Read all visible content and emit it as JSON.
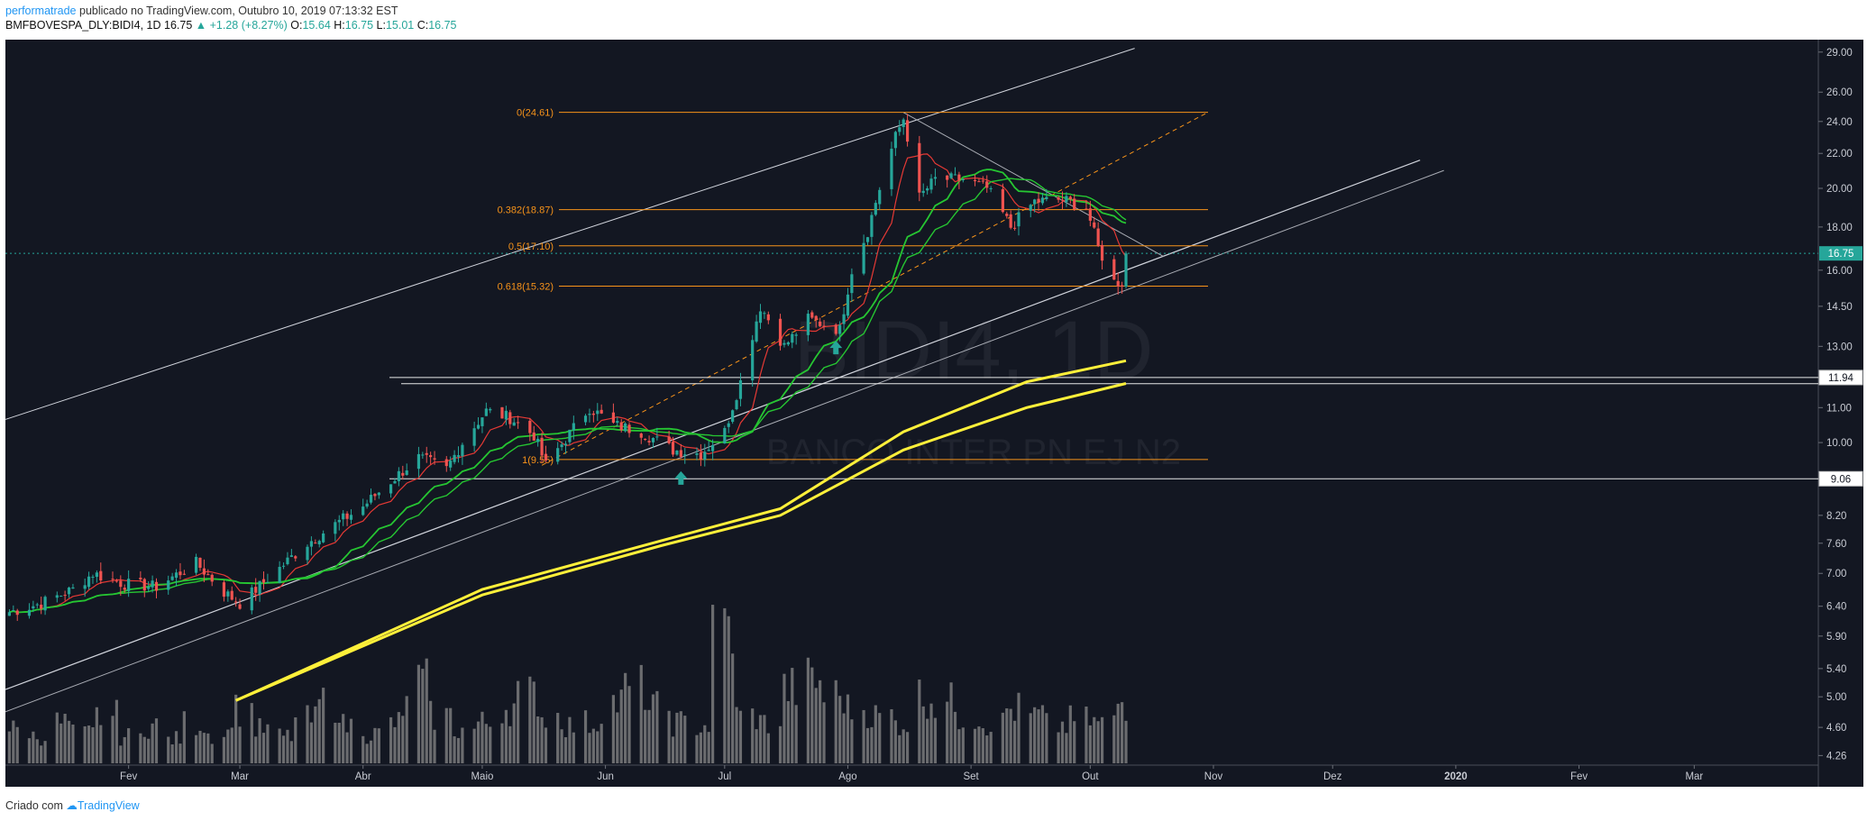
{
  "header": {
    "author": "performatrade",
    "published": "publicado no TradingView.com, Outubro 10, 2019 07:13:32 EST",
    "symbol": "BMFBOVESPA_DLY:BIDI4, 1D",
    "last": "16.75",
    "change": "▲ +1.28 (+8.27%)",
    "o_label": "O:",
    "o_value": "15.64",
    "h_label": "H:",
    "h_value": "16.75",
    "l_label": "L:",
    "l_value": "15.01",
    "c_label": "C:",
    "c_value": "16.75"
  },
  "footer": {
    "prefix": "Criado com",
    "brand": "TradingView"
  },
  "watermark": {
    "ticker": "BIDI4, 1D",
    "name": "BANCO INTER PN EJ N2"
  },
  "colors": {
    "background": "#131722",
    "up": "#26a69a",
    "down": "#ef5350",
    "fib": "#f7931a",
    "ma_long": "#fff03a",
    "ma_fast": "#e53935",
    "ma_mid": "#26c632",
    "volume": "#8a8a8a"
  },
  "chart_data": {
    "type": "candlestick",
    "scale": "log",
    "ylim": [
      4.15,
      30
    ],
    "price_ticks": [
      "29.00",
      "26.00",
      "24.00",
      "22.00",
      "20.00",
      "18.00",
      "16.00",
      "14.50",
      "13.00",
      "11.94",
      "11.00",
      "10.00",
      "9.06",
      "8.20",
      "7.60",
      "7.00",
      "6.40",
      "5.90",
      "5.40",
      "5.00",
      "4.60",
      "4.26"
    ],
    "price_labels": [
      {
        "text": "16.75",
        "value": 16.75,
        "style": "current"
      },
      {
        "text": "11.94",
        "value": 11.94,
        "style": "line"
      },
      {
        "text": "9.06",
        "value": 9.06,
        "style": "line"
      }
    ],
    "x_labels": [
      "Fev",
      "Mar",
      "Abr",
      "Maio",
      "Jun",
      "Jul",
      "Ago",
      "Set",
      "Out",
      "Nov",
      "Dez",
      "2020",
      "Fev",
      "Mar"
    ],
    "fib_levels": [
      {
        "label": "0(24.61)",
        "value": 24.61
      },
      {
        "label": "0.382(18.87)",
        "value": 18.87
      },
      {
        "label": "0.5(17.10)",
        "value": 17.1
      },
      {
        "label": "0.618(15.32)",
        "value": 15.32
      },
      {
        "label": "1(9.55)",
        "value": 9.55
      }
    ],
    "horizontal_lines": [
      11.94,
      11.74,
      9.06
    ],
    "price_path": [
      [
        "2019-01-02",
        6.3
      ],
      [
        "2019-01-10",
        6.45
      ],
      [
        "2019-01-18",
        6.7
      ],
      [
        "2019-01-23",
        7.0
      ],
      [
        "2019-01-31",
        6.8
      ],
      [
        "2019-02-08",
        6.75
      ],
      [
        "2019-02-18",
        7.2
      ],
      [
        "2019-02-25",
        6.65
      ],
      [
        "2019-03-01",
        6.45
      ],
      [
        "2019-03-05",
        6.7
      ],
      [
        "2019-03-11",
        7.1
      ],
      [
        "2019-03-18",
        7.6
      ],
      [
        "2019-03-25",
        8.0
      ],
      [
        "2019-04-01",
        8.4
      ],
      [
        "2019-04-08",
        9.0
      ],
      [
        "2019-04-15",
        9.6
      ],
      [
        "2019-04-22",
        9.3
      ],
      [
        "2019-04-26",
        10.0
      ],
      [
        "2019-05-02",
        10.9
      ],
      [
        "2019-05-08",
        10.7
      ],
      [
        "2019-05-14",
        10.2
      ],
      [
        "2019-05-17",
        9.4
      ],
      [
        "2019-05-22",
        10.1
      ],
      [
        "2019-05-28",
        11.0
      ],
      [
        "2019-06-03",
        10.5
      ],
      [
        "2019-06-10",
        10.3
      ],
      [
        "2019-06-18",
        9.8
      ],
      [
        "2019-06-25",
        9.7
      ],
      [
        "2019-07-01",
        10.3
      ],
      [
        "2019-07-05",
        11.8
      ],
      [
        "2019-07-10",
        14.5
      ],
      [
        "2019-07-16",
        13.0
      ],
      [
        "2019-07-22",
        14.0
      ],
      [
        "2019-07-30",
        13.6
      ],
      [
        "2019-08-02",
        16.0
      ],
      [
        "2019-08-06",
        17.8
      ],
      [
        "2019-08-09",
        20.0
      ],
      [
        "2019-08-13",
        23.0
      ],
      [
        "2019-08-15",
        24.2
      ],
      [
        "2019-08-19",
        19.5
      ],
      [
        "2019-08-23",
        20.5
      ],
      [
        "2019-08-30",
        20.5
      ],
      [
        "2019-09-05",
        20.0
      ],
      [
        "2019-09-11",
        18.0
      ],
      [
        "2019-09-17",
        19.3
      ],
      [
        "2019-09-24",
        19.4
      ],
      [
        "2019-09-30",
        19.0
      ],
      [
        "2019-10-03",
        17.0
      ],
      [
        "2019-10-07",
        15.5
      ],
      [
        "2019-10-09",
        15.47
      ],
      [
        "2019-10-10",
        16.75
      ]
    ],
    "ma_long": [
      [
        "2019-02-28",
        4.95
      ],
      [
        "2019-05-01",
        6.6
      ],
      [
        "2019-06-15",
        7.55
      ],
      [
        "2019-07-15",
        8.2
      ],
      [
        "2019-08-15",
        9.8
      ],
      [
        "2019-09-15",
        11.0
      ],
      [
        "2019-10-10",
        11.75
      ]
    ],
    "ma_long_upper": [
      [
        "2019-02-28",
        4.95
      ],
      [
        "2019-05-01",
        6.7
      ],
      [
        "2019-06-15",
        7.65
      ],
      [
        "2019-07-15",
        8.35
      ],
      [
        "2019-08-15",
        10.3
      ],
      [
        "2019-09-15",
        11.8
      ],
      [
        "2019-10-10",
        12.5
      ]
    ],
    "volume_max_value": 1.0,
    "volume": [
      0.25,
      0.2,
      0.3,
      0.22,
      0.35,
      0.2,
      0.28,
      0.18,
      0.3,
      0.22,
      0.4,
      0.25,
      0.2,
      0.32,
      0.45,
      0.28,
      0.22,
      0.3,
      0.6,
      0.35,
      0.25,
      0.3,
      0.42,
      0.5,
      0.35,
      0.28,
      0.3,
      0.45,
      0.55,
      0.4,
      0.3,
      0.28,
      1.0,
      0.35,
      0.3,
      0.55,
      0.6,
      0.5,
      0.4,
      0.35,
      0.3,
      0.5,
      0.45,
      0.35,
      0.3,
      0.4,
      0.35,
      0.28,
      0.32,
      0.3,
      0.45
    ]
  }
}
